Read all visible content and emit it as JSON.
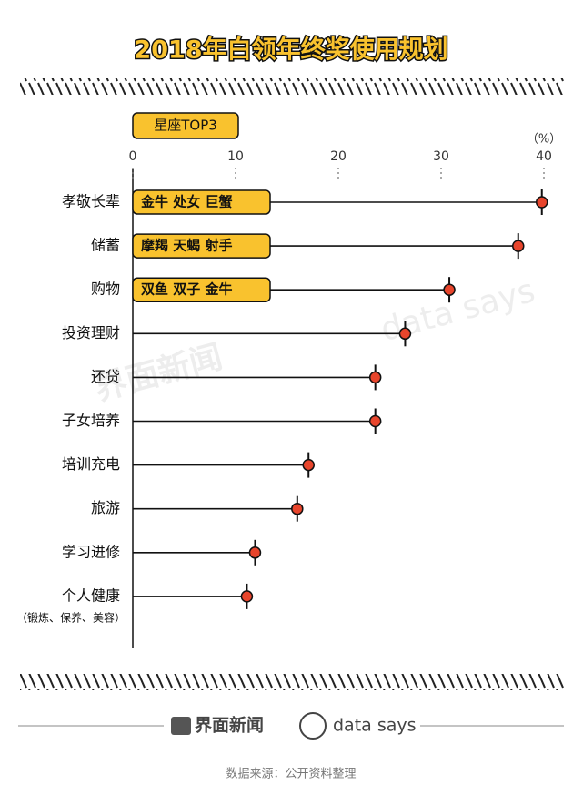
{
  "chart_data": {
    "type": "lollipop",
    "title": "2018年白领年终奖使用规划",
    "legend_title": "星座TOP3",
    "unit_label": "（%）",
    "categories": [
      "孝敬长辈",
      "储蓄",
      "购物",
      "投资理财",
      "还贷",
      "子女培养",
      "培训充电",
      "旅游",
      "学习进修",
      "个人健康"
    ],
    "category_note": "（锻炼、保养、美容）",
    "values": [
      39.8,
      37.5,
      30.8,
      26.5,
      23.6,
      23.6,
      17.1,
      16.0,
      11.9,
      11.1
    ],
    "annotations": [
      "金牛 处女 巨蟹",
      "摩羯 天蝎 射手",
      "双鱼 双子 金牛",
      null,
      null,
      null,
      null,
      null,
      null,
      null
    ],
    "xlim": [
      0,
      40
    ],
    "xticks": [
      0,
      10,
      20,
      30,
      40
    ],
    "color": "#e8452c",
    "highlight_color": "#f9c22e"
  },
  "footer": {
    "brand": "界面新闻",
    "brand2": "data says",
    "source": "数据来源：公开资料整理"
  }
}
